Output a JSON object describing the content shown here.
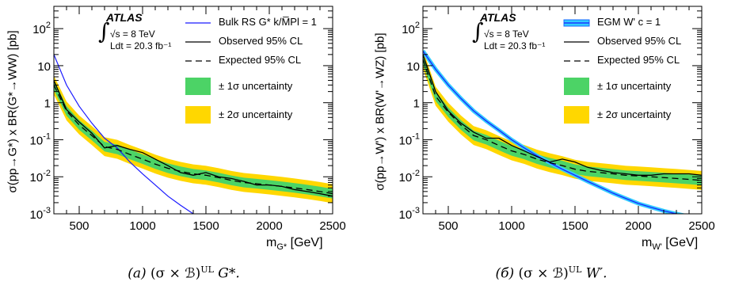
{
  "chart_data": [
    {
      "type": "line",
      "log_y": true,
      "xlim": [
        300,
        2500
      ],
      "ylim": [
        0.001,
        400
      ],
      "xticks": [
        "500",
        "1000",
        "1500",
        "2000",
        "2500"
      ],
      "xtick_values": [
        500,
        1000,
        1500,
        2000,
        2500
      ],
      "yticks": [
        "10^-3",
        "10^-2",
        "10^-1",
        "1",
        "10",
        "10^2"
      ],
      "ylabel": "σ(pp→G*) x BR(G*→WW) [pb]",
      "xlabel_main": "m",
      "xlabel_sub": "G*",
      "xlabel_unit": " [GeV]",
      "atlas_label": "ATLAS",
      "energy_label": "√s = 8 TeV",
      "lumi_label": "Ldt = 20.3 fb⁻¹",
      "caption_index": "(a)",
      "caption_formula": "(σ × ℬ)",
      "caption_sup": "UL",
      "caption_tail": "G*.",
      "legend": [
        {
          "label": "Bulk RS G* k/M̅Pl = 1",
          "style": "theory"
        },
        {
          "label": "Observed 95% CL",
          "style": "observed"
        },
        {
          "label": "Expected 95% CL",
          "style": "expected"
        },
        {
          "label": "± 1σ uncertainty",
          "style": "band1"
        },
        {
          "label": "± 2σ uncertainty",
          "style": "band2"
        }
      ],
      "colors": {
        "theory": "#1a1aff",
        "band1": "#4cd366",
        "band2": "#ffd700",
        "line": "#000000"
      },
      "x": [
        300,
        400,
        500,
        600,
        700,
        800,
        900,
        1000,
        1100,
        1200,
        1300,
        1400,
        1500,
        1600,
        1700,
        1800,
        1900,
        2000,
        2100,
        2200,
        2300,
        2400,
        2500
      ],
      "expected": [
        3.0,
        0.6,
        0.25,
        0.13,
        0.065,
        0.055,
        0.04,
        0.03,
        0.022,
        0.017,
        0.014,
        0.012,
        0.011,
        0.0095,
        0.008,
        0.007,
        0.0065,
        0.006,
        0.0055,
        0.005,
        0.0045,
        0.004,
        0.0035
      ],
      "observed": [
        4.0,
        0.65,
        0.3,
        0.15,
        0.06,
        0.07,
        0.055,
        0.045,
        0.03,
        0.02,
        0.013,
        0.011,
        0.013,
        0.01,
        0.009,
        0.0075,
        0.006,
        0.006,
        0.0055,
        0.0045,
        0.004,
        0.0035,
        0.003
      ],
      "band1_factor": 1.35,
      "band2_factor": 1.8,
      "theory": {
        "x": [
          300,
          400,
          500,
          600,
          700,
          800,
          900,
          1000,
          1100,
          1200,
          1300,
          1400
        ],
        "y": [
          20,
          3.0,
          0.8,
          0.28,
          0.11,
          0.06,
          0.025,
          0.012,
          0.006,
          0.003,
          0.0017,
          0.001
        ]
      }
    },
    {
      "type": "line",
      "log_y": true,
      "xlim": [
        300,
        2500
      ],
      "ylim": [
        0.001,
        400
      ],
      "xticks": [
        "500",
        "1000",
        "1500",
        "2000",
        "2500"
      ],
      "xtick_values": [
        500,
        1000,
        1500,
        2000,
        2500
      ],
      "yticks": [
        "10^-3",
        "10^-2",
        "10^-1",
        "1",
        "10",
        "10^2"
      ],
      "ylabel": "σ(pp→W') x BR(W'→WZ) [pb]",
      "xlabel_main": "m",
      "xlabel_sub": "W'",
      "xlabel_unit": " [GeV]",
      "atlas_label": "ATLAS",
      "energy_label": "√s = 8 TeV",
      "lumi_label": "Ldt = 20.3 fb⁻¹",
      "caption_index": "(б)",
      "caption_formula": "(σ × ℬ)",
      "caption_sup": "UL",
      "caption_tail": "W′.",
      "legend": [
        {
          "label": "EGM W' c = 1",
          "style": "theory"
        },
        {
          "label": "Observed 95% CL",
          "style": "observed"
        },
        {
          "label": "Expected 95% CL",
          "style": "expected"
        },
        {
          "label": "± 1σ uncertainty",
          "style": "band1"
        },
        {
          "label": "± 2σ uncertainty",
          "style": "band2"
        }
      ],
      "colors": {
        "theory": "#1a1aff",
        "theory_band": "#33ccff",
        "band1": "#4cd366",
        "band2": "#ffd700",
        "line": "#000000"
      },
      "x": [
        300,
        400,
        500,
        600,
        700,
        800,
        900,
        1000,
        1100,
        1200,
        1300,
        1400,
        1500,
        1600,
        1700,
        1800,
        1900,
        2000,
        2100,
        2200,
        2300,
        2400,
        2500
      ],
      "expected": [
        15.0,
        1.5,
        0.55,
        0.25,
        0.13,
        0.1,
        0.07,
        0.05,
        0.04,
        0.03,
        0.024,
        0.02,
        0.016,
        0.014,
        0.013,
        0.012,
        0.011,
        0.0105,
        0.01,
        0.0095,
        0.009,
        0.0085,
        0.008
      ],
      "observed": [
        20.0,
        2.0,
        0.6,
        0.28,
        0.16,
        0.11,
        0.11,
        0.07,
        0.05,
        0.035,
        0.025,
        0.03,
        0.025,
        0.018,
        0.015,
        0.013,
        0.012,
        0.011,
        0.011,
        0.012,
        0.012,
        0.012,
        0.011
      ],
      "band1_factor": 1.35,
      "band2_factor": 1.8,
      "theory": {
        "x": [
          300,
          400,
          500,
          600,
          700,
          800,
          900,
          1000,
          1100,
          1200,
          1300,
          1400,
          1500,
          1600,
          1700,
          1800,
          1900,
          2000,
          2100,
          2200,
          2300,
          2400
        ],
        "y": [
          25,
          8.0,
          3.0,
          1.3,
          0.6,
          0.32,
          0.18,
          0.1,
          0.06,
          0.037,
          0.024,
          0.016,
          0.011,
          0.0075,
          0.0052,
          0.0036,
          0.0026,
          0.0019,
          0.0015,
          0.0012,
          0.001,
          0.00085
        ]
      }
    }
  ]
}
